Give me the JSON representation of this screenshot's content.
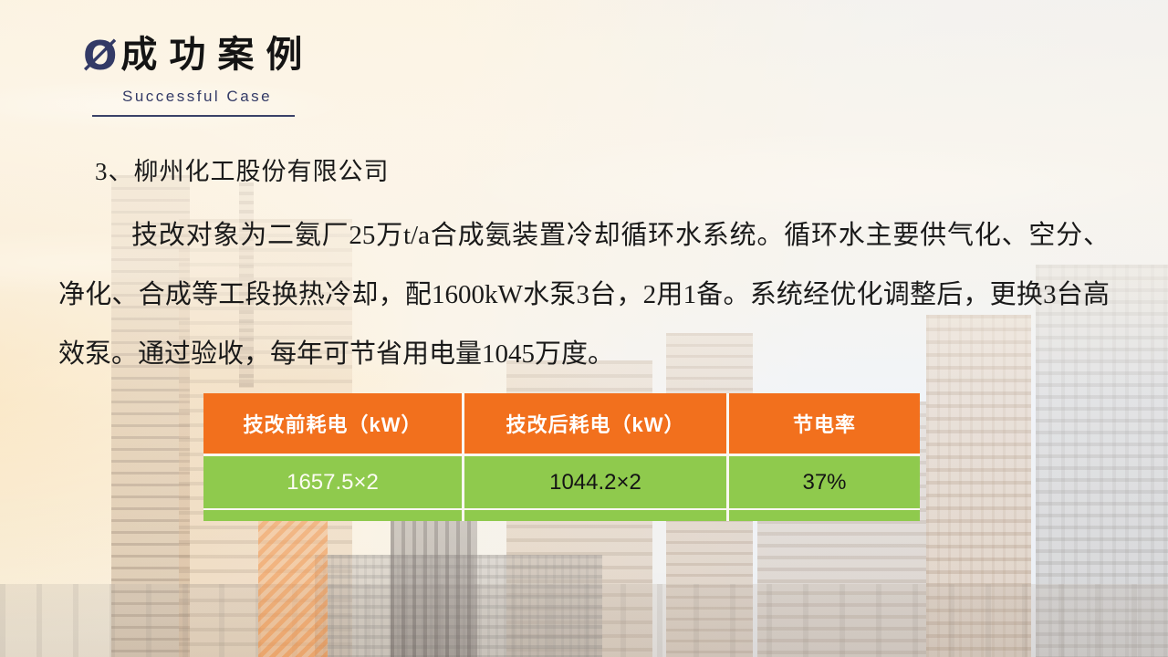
{
  "slide": {
    "title_icon": "Ø",
    "title": "成功案例",
    "subtitle": "Successful Case",
    "section_heading": "3、柳州化工股份有限公司",
    "paragraph": "技改对象为二氨厂25万t/a合成氨装置冷却循环水系统。循环水主要供气化、空分、净化、合成等工段换热冷却，配1600kW水泵3台，2用1备。系统经优化调整后，更换3台高效泵。通过验收，每年可节省用电量1045万度。"
  },
  "table": {
    "headers": [
      "技改前耗电（kW）",
      "技改后耗电（kW）",
      "节电率"
    ],
    "rows": [
      {
        "cells": [
          "1657.5×2",
          "1044.2×2",
          "37%"
        ]
      }
    ]
  },
  "colors": {
    "header_orange": "#F2701D",
    "body_green": "#8FCA4D",
    "accent_navy": "#333A66"
  }
}
